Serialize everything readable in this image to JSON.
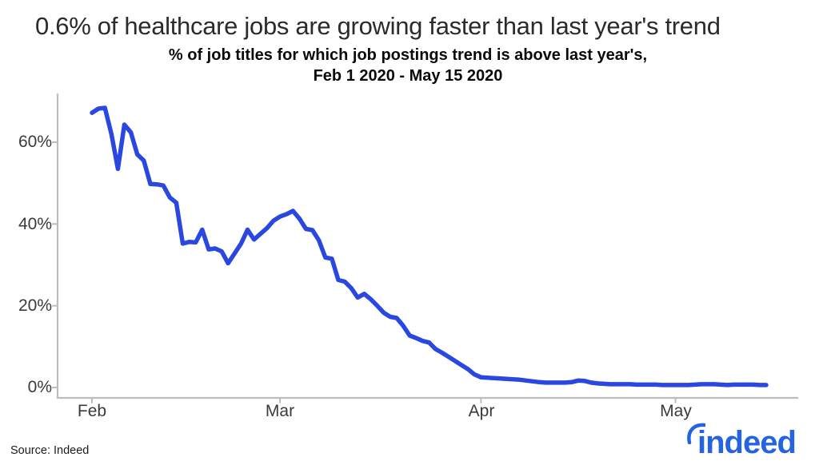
{
  "chart_data": {
    "type": "line",
    "title": "0.6% of healthcare jobs are growing faster than last year's trend",
    "subtitle_line1": "% of job titles for which job postings trend is above last year's,",
    "subtitle_line2": "Feb 1 2020 - May 15 2020",
    "xlabel": "",
    "ylabel": "",
    "unit": "%",
    "x_range": [
      "Feb 1 2020",
      "May 15 2020"
    ],
    "x_frequency": "daily",
    "x_tick_labels": [
      "Feb",
      "Mar",
      "Apr",
      "May"
    ],
    "x_tick_day_index": [
      0,
      29,
      60,
      90
    ],
    "y_tick_labels": [
      "0%",
      "20%",
      "40%",
      "60%"
    ],
    "y_tick_values": [
      0,
      20,
      40,
      60
    ],
    "ylim": [
      -2.5,
      72
    ],
    "grid": false,
    "legend": false,
    "line_color": "#2a47e0",
    "axis_color": "#bdbdbd",
    "series": [
      {
        "name": "% of job titles with postings trend above last year's",
        "values": [
          67.2,
          68.2,
          68.4,
          62.0,
          53.5,
          64.3,
          62.4,
          57.0,
          55.5,
          49.8,
          49.7,
          49.4,
          46.5,
          45.2,
          35.2,
          35.6,
          35.5,
          38.6,
          33.8,
          34.0,
          33.3,
          30.4,
          32.8,
          35.2,
          38.6,
          36.2,
          37.6,
          39.0,
          40.8,
          41.8,
          42.4,
          43.2,
          41.3,
          38.8,
          38.5,
          36.0,
          31.8,
          31.5,
          26.3,
          25.9,
          24.3,
          22.0,
          22.9,
          21.6,
          20.0,
          18.3,
          17.3,
          17.0,
          15.1,
          12.7,
          12.1,
          11.4,
          11.0,
          9.4,
          8.5,
          7.5,
          6.5,
          5.5,
          4.5,
          3.2,
          2.5,
          2.4,
          2.3,
          2.2,
          2.1,
          2.0,
          1.9,
          1.7,
          1.5,
          1.3,
          1.2,
          1.2,
          1.2,
          1.2,
          1.3,
          1.7,
          1.6,
          1.2,
          1.0,
          0.9,
          0.8,
          0.8,
          0.8,
          0.8,
          0.7,
          0.7,
          0.7,
          0.7,
          0.6,
          0.6,
          0.6,
          0.6,
          0.6,
          0.7,
          0.8,
          0.8,
          0.8,
          0.7,
          0.6,
          0.7,
          0.7,
          0.7,
          0.7,
          0.6,
          0.6
        ]
      }
    ],
    "final_value": 0.6
  },
  "footer": {
    "source": "Source: Indeed",
    "logo_text": "indeed",
    "logo_color": "#2563e1"
  }
}
